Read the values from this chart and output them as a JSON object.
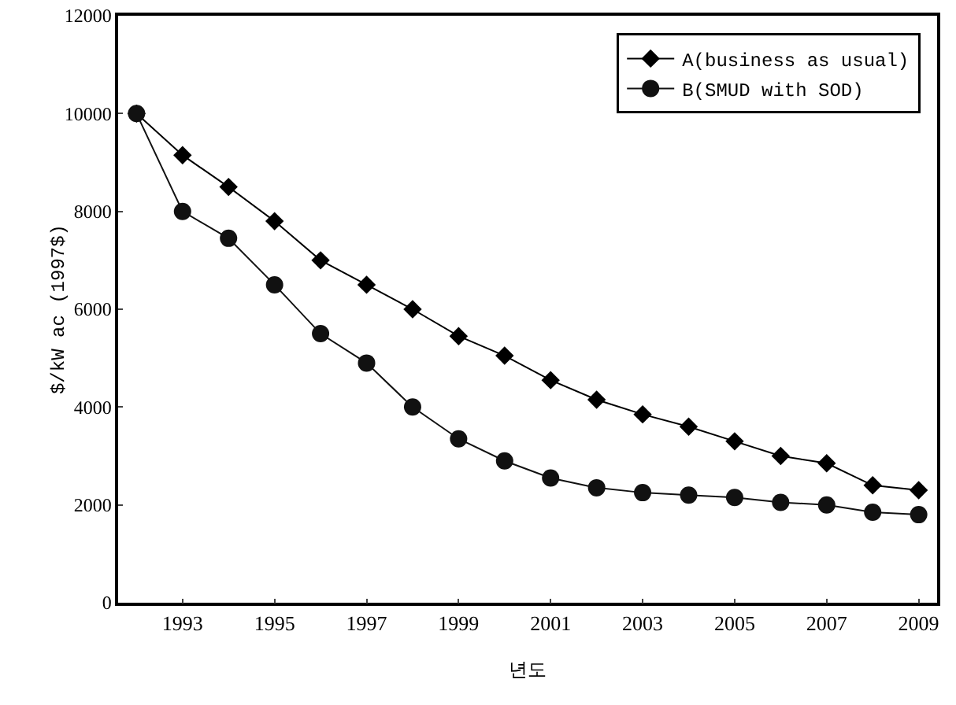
{
  "chart_data": {
    "type": "line",
    "xlabel": "년도",
    "ylabel": "$/kW ac (1997$)",
    "x": [
      1992,
      1993,
      1994,
      1995,
      1996,
      1997,
      1998,
      1999,
      2000,
      2001,
      2002,
      2003,
      2004,
      2005,
      2006,
      2007,
      2008,
      2009
    ],
    "xlim": [
      1991.6,
      2009.4
    ],
    "xticks": [
      1993,
      1995,
      1997,
      1999,
      2001,
      2003,
      2005,
      2007,
      2009
    ],
    "ylim": [
      0,
      12000
    ],
    "yticks": [
      0,
      2000,
      4000,
      6000,
      8000,
      10000,
      12000
    ],
    "series": [
      {
        "name": "A(business as usual)",
        "color": "#000000",
        "marker": "diamond",
        "values": [
          10000,
          9150,
          8500,
          7800,
          7000,
          6500,
          6000,
          5450,
          5050,
          4550,
          4150,
          3850,
          3600,
          3300,
          3000,
          2850,
          2400,
          2300
        ]
      },
      {
        "name": "B(SMUD with SOD)",
        "color": "#111111",
        "marker": "circle",
        "values": [
          10000,
          8000,
          7450,
          6500,
          5500,
          4900,
          4000,
          3350,
          2900,
          2550,
          2350,
          2250,
          2200,
          2150,
          2050,
          2000,
          1850,
          1800
        ]
      }
    ],
    "legend": "top right",
    "grid": false,
    "line_style": "solid"
  }
}
